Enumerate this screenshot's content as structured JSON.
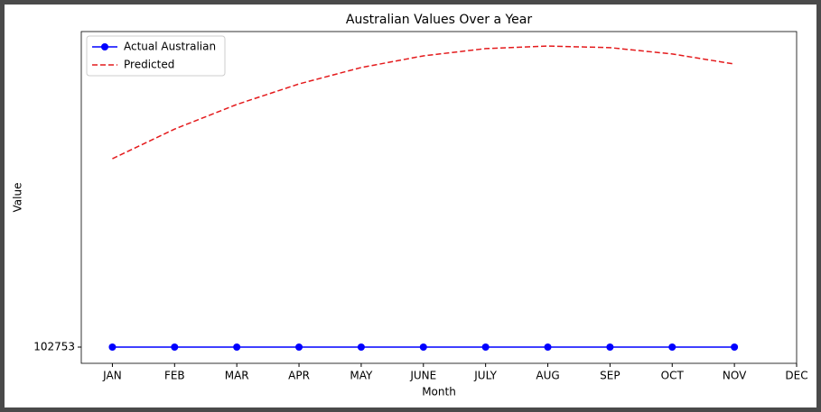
{
  "chart_data": {
    "type": "line",
    "title": "Australian Values Over a Year",
    "xlabel": "Month",
    "ylabel": "Value",
    "categories": [
      "JAN",
      "FEB",
      "MAR",
      "APR",
      "MAY",
      "JUNE",
      "JULY",
      "AUG",
      "SEP",
      "OCT",
      "NOV",
      "DEC"
    ],
    "series": [
      {
        "name": "Actual Australian",
        "color": "#0000ff",
        "marker": "o",
        "linestyle": "solid",
        "values": [
          0,
          0,
          0,
          0,
          0,
          0,
          0,
          0,
          0,
          0,
          0,
          null
        ]
      },
      {
        "name": "Predicted",
        "color": "#e41a1c",
        "marker": null,
        "linestyle": "dashed",
        "values": [
          59.7,
          69.1,
          76.9,
          83.4,
          88.6,
          92.3,
          94.6,
          95.4,
          94.9,
          92.9,
          89.7,
          null
        ]
      }
    ],
    "xlim": [
      -0.5,
      11
    ],
    "ylim": [
      -5.14,
      100
    ],
    "yticks": [
      {
        "value": 0,
        "label": "102753"
      }
    ],
    "legend": "upper left"
  }
}
